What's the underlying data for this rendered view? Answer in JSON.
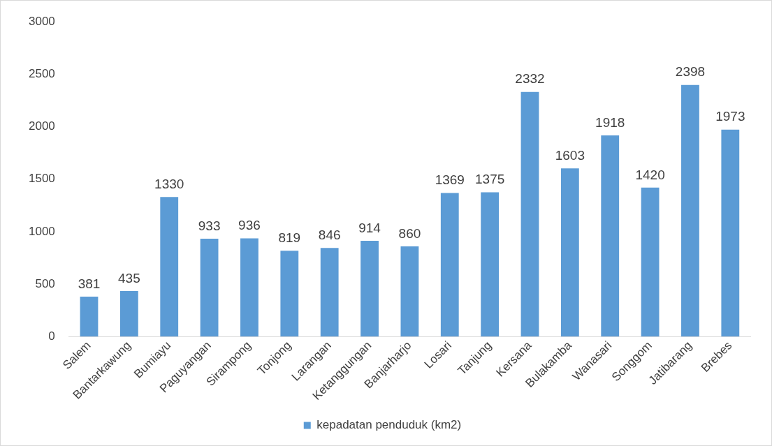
{
  "chart_data": {
    "type": "bar",
    "categories": [
      "Salem",
      "Bantarkawung",
      "Bumiayu",
      "Paguyangan",
      "Sirampong",
      "Tonjong",
      "Larangan",
      "Ketanggungan",
      "Banjarharjo",
      "Losari",
      "Tanjung",
      "Kersana",
      "Bulakamba",
      "Wanasari",
      "Songgom",
      "Jatibarang",
      "Brebes"
    ],
    "series": [
      {
        "name": "kepadatan penduduk (km2)",
        "color": "#5b9bd5",
        "values": [
          381,
          435,
          1330,
          933,
          936,
          819,
          846,
          914,
          860,
          1369,
          1375,
          2332,
          1603,
          1918,
          1420,
          2398,
          1973
        ]
      }
    ],
    "ylim": [
      0,
      3000
    ],
    "yticks": [
      0,
      500,
      1000,
      1500,
      2000,
      2500,
      3000
    ],
    "grid": false,
    "legend": "bottom",
    "data_labels": true
  }
}
